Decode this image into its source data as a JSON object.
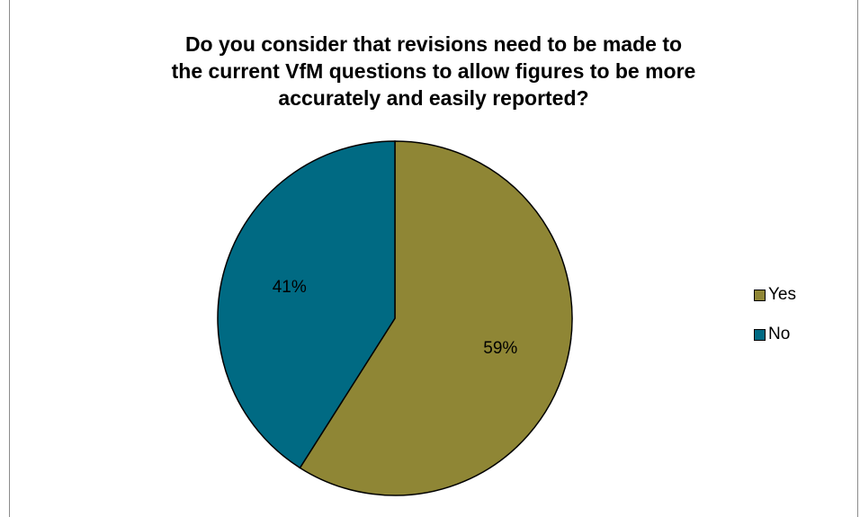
{
  "chart_data": {
    "type": "pie",
    "title_lines": [
      "Do you consider that revisions need to be made to",
      "the current VfM questions to allow figures to be more",
      "accurately and easily reported?"
    ],
    "categories": [
      "Yes",
      "No"
    ],
    "values": [
      59,
      41
    ],
    "value_labels": [
      "59%",
      "41%"
    ],
    "colors": [
      "#8f8635",
      "#006a83"
    ],
    "legend_position": "right",
    "start_angle": "12 o'clock, clockwise"
  }
}
